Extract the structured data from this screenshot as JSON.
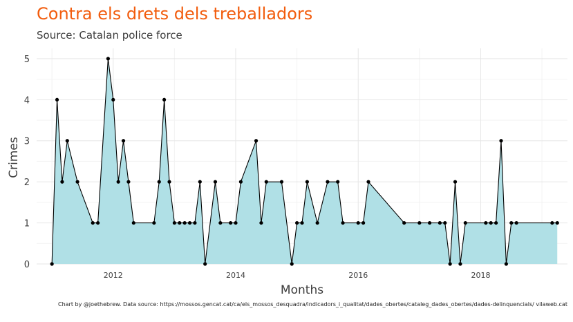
{
  "chart_data": {
    "type": "area",
    "title": "Contra els drets dels treballadors",
    "subtitle": "Source: Catalan police force",
    "xlabel": "Months",
    "ylabel": "Crimes",
    "caption": "Chart by @joethebrew. Data source: https://mossos.gencat.cat/ca/els_mossos_desquadra/indicadors_i_qualitat/dades_obertes/cataleg_dades_obertes/dades-delinquencials/ vilaweb.cat",
    "xlim": [
      "2010-10",
      "2019-06"
    ],
    "ylim": [
      0,
      5.25
    ],
    "x_ticks": [
      "2012",
      "2014",
      "2016",
      "2018"
    ],
    "y_ticks": [
      "0",
      "1",
      "2",
      "3",
      "4",
      "5"
    ],
    "grid": true,
    "colors": {
      "title": "#f25c0d",
      "area": "#b0e0e6",
      "line": "#000000",
      "points": "#000000",
      "grid": "#e6e6e6"
    },
    "x": [
      "2011-01",
      "2011-02",
      "2011-03",
      "2011-04",
      "2011-06",
      "2011-09",
      "2011-10",
      "2011-12",
      "2012-01",
      "2012-02",
      "2012-03",
      "2012-04",
      "2012-05",
      "2012-09",
      "2012-10",
      "2012-11",
      "2012-12",
      "2013-01",
      "2013-02",
      "2013-03",
      "2013-04",
      "2013-05",
      "2013-06",
      "2013-07",
      "2013-09",
      "2013-10",
      "2013-12",
      "2014-01",
      "2014-02",
      "2014-05",
      "2014-06",
      "2014-07",
      "2014-10",
      "2014-12",
      "2015-01",
      "2015-02",
      "2015-03",
      "2015-05",
      "2015-07",
      "2015-09",
      "2015-10",
      "2016-01",
      "2016-02",
      "2016-03",
      "2016-10",
      "2017-01",
      "2017-03",
      "2017-05",
      "2017-06",
      "2017-07",
      "2017-08",
      "2017-09",
      "2017-10",
      "2018-02",
      "2018-03",
      "2018-04",
      "2018-05",
      "2018-06",
      "2018-07",
      "2018-08",
      "2019-03",
      "2019-04"
    ],
    "values": [
      0,
      4,
      2,
      3,
      2,
      1,
      1,
      5,
      4,
      2,
      3,
      2,
      1,
      1,
      2,
      4,
      2,
      1,
      1,
      1,
      1,
      1,
      2,
      0,
      2,
      1,
      1,
      1,
      2,
      3,
      1,
      2,
      2,
      0,
      1,
      1,
      2,
      1,
      2,
      2,
      1,
      1,
      1,
      2,
      1,
      1,
      1,
      1,
      1,
      0,
      2,
      0,
      1,
      1,
      1,
      1,
      3,
      0,
      1,
      1,
      1,
      1
    ]
  }
}
